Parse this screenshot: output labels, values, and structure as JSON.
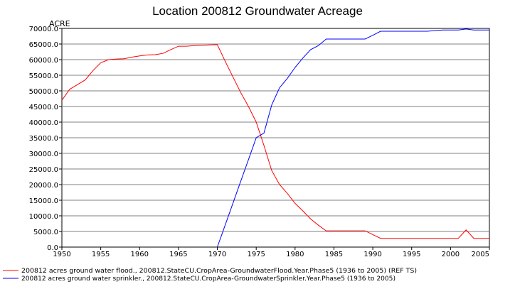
{
  "chart_data": {
    "type": "line",
    "title": "Location 200812 Groundwater Acreage",
    "ylabel": "ACRE",
    "xlim": [
      1950,
      2005
    ],
    "ylim": [
      0,
      70000
    ],
    "x_ticks": [
      1950,
      1955,
      1960,
      1965,
      1970,
      1975,
      1980,
      1985,
      1990,
      1995,
      2000,
      2005
    ],
    "x_tick_labels": [
      "1950",
      "1955",
      "1960",
      "1965",
      "1970",
      "1975",
      "1980",
      "1985",
      "1990",
      "1995",
      "2000",
      "2005"
    ],
    "y_ticks": [
      0,
      5000,
      10000,
      15000,
      20000,
      25000,
      30000,
      35000,
      40000,
      45000,
      50000,
      55000,
      60000,
      65000,
      70000
    ],
    "y_tick_labels": [
      "0.0",
      "5000.0",
      "10000.0",
      "15000.0",
      "20000.0",
      "25000.0",
      "30000.0",
      "35000.0",
      "40000.0",
      "45000.0",
      "50000.0",
      "55000.0",
      "60000.0",
      "65000.0",
      "70000.0"
    ],
    "grid": true,
    "legend_position": "bottom",
    "series": [
      {
        "name": "200812 acres ground water flood., 200812.StateCU.CropArea-GroundwaterFlood.Year.Phase5 (1936 to 2005) (REF TS)",
        "color": "#ff0000",
        "x": [
          1950,
          1951,
          1952,
          1953,
          1954,
          1955,
          1956,
          1957,
          1958,
          1959,
          1960,
          1961,
          1962,
          1963,
          1964,
          1965,
          1966,
          1967,
          1968,
          1969,
          1970,
          1971,
          1972,
          1973,
          1974,
          1975,
          1976,
          1977,
          1978,
          1979,
          1980,
          1981,
          1982,
          1983,
          1984,
          1985,
          1986,
          1987,
          1988,
          1989,
          1990,
          1991,
          1992,
          1993,
          1994,
          1995,
          1996,
          1997,
          1998,
          1999,
          2000,
          2001,
          2002,
          2003,
          2004,
          2005
        ],
        "y": [
          47000,
          50500,
          52000,
          53500,
          56500,
          59000,
          60000,
          60200,
          60300,
          60800,
          61200,
          61500,
          61600,
          62000,
          63200,
          64300,
          64300,
          64500,
          64600,
          64700,
          64800,
          59500,
          54500,
          49500,
          45000,
          40000,
          32500,
          24500,
          20000,
          17200,
          14000,
          11600,
          9000,
          7000,
          5200,
          5200,
          5200,
          5200,
          5200,
          5200,
          4000,
          2800,
          2800,
          2800,
          2800,
          2800,
          2800,
          2800,
          2800,
          2800,
          2800,
          2800,
          5500,
          2800,
          2800,
          2800
        ]
      },
      {
        "name": "200812 acres ground water sprinkler., 200812.StateCU.CropArea-GroundwaterSprinkler.Year.Phase5 (1936 to 2005)",
        "color": "#0000ff",
        "x": [
          1970,
          1971,
          1972,
          1973,
          1974,
          1975,
          1976,
          1977,
          1978,
          1979,
          1980,
          1981,
          1982,
          1983,
          1984,
          1985,
          1986,
          1987,
          1988,
          1989,
          1990,
          1991,
          1992,
          1993,
          1994,
          1995,
          1996,
          1997,
          1998,
          1999,
          2000,
          2001,
          2002,
          2003,
          2004,
          2005
        ],
        "y": [
          0,
          7000,
          14000,
          21000,
          28000,
          35000,
          36500,
          45500,
          51000,
          54000,
          57500,
          60500,
          63200,
          64500,
          66600,
          66600,
          66600,
          66600,
          66600,
          66600,
          67800,
          69100,
          69100,
          69100,
          69100,
          69100,
          69100,
          69100,
          69300,
          69500,
          69500,
          69500,
          69800,
          69500,
          69500,
          69500
        ]
      }
    ]
  }
}
